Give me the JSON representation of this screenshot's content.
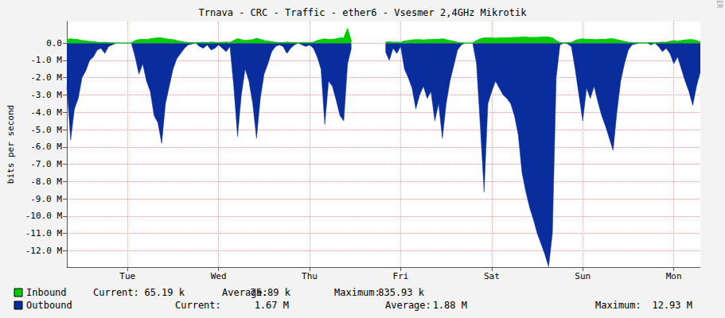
{
  "chart_data": {
    "type": "area",
    "title": "Trnava - CRC - Traffic - ether6 - Vsesmer 2,4GHz Mikrotik",
    "y_label": "bits per second",
    "side_text": "RRDTOOL / TOBI OETIKER",
    "grid": true,
    "legend": "bottom",
    "ylim": [
      -12.95,
      1.25
    ],
    "yticks": [
      {
        "value": 0,
        "label": "0.0"
      },
      {
        "value": -1,
        "label": "-1.0 M"
      },
      {
        "value": -2,
        "label": "-2.0 M"
      },
      {
        "value": -3,
        "label": "-3.0 M"
      },
      {
        "value": -4,
        "label": "-4.0 M"
      },
      {
        "value": -5,
        "label": "-5.0 M"
      },
      {
        "value": -6,
        "label": "-6.0 M"
      },
      {
        "value": -7,
        "label": "-7.0 M"
      },
      {
        "value": -8,
        "label": "-8.0 M"
      },
      {
        "value": -9,
        "label": "-9.0 M"
      },
      {
        "value": -10,
        "label": "-10.0 M"
      },
      {
        "value": -11,
        "label": "-11.0 M"
      },
      {
        "value": -12,
        "label": "-12.0 M"
      }
    ],
    "categories": [
      null,
      null,
      null,
      null,
      null,
      null,
      null,
      null,
      null,
      null,
      null,
      null,
      null,
      null,
      null,
      null,
      "Tue",
      null,
      null,
      null,
      null,
      null,
      null,
      null,
      null,
      null,
      null,
      null,
      null,
      null,
      null,
      null,
      null,
      null,
      null,
      null,
      null,
      null,
      null,
      null,
      "Wed",
      null,
      null,
      null,
      null,
      null,
      null,
      null,
      null,
      null,
      null,
      null,
      null,
      null,
      null,
      null,
      null,
      null,
      null,
      null,
      null,
      null,
      null,
      null,
      "Thu",
      null,
      null,
      null,
      null,
      null,
      null,
      null,
      null,
      null,
      null,
      null,
      null,
      null,
      null,
      null,
      null,
      null,
      null,
      null,
      null,
      null,
      null,
      null,
      "Fri",
      null,
      null,
      null,
      null,
      null,
      null,
      null,
      null,
      null,
      null,
      null,
      null,
      null,
      null,
      null,
      null,
      null,
      null,
      null,
      null,
      null,
      null,
      null,
      "Sat",
      null,
      null,
      null,
      null,
      null,
      null,
      null,
      null,
      null,
      null,
      null,
      null,
      null,
      null,
      null,
      null,
      null,
      null,
      null,
      null,
      null,
      null,
      null,
      "Sun",
      null,
      null,
      null,
      null,
      null,
      null,
      null,
      null,
      null,
      null,
      null,
      null,
      null,
      null,
      null,
      null,
      null,
      null,
      null,
      null,
      null,
      null,
      null,
      "Mon",
      null,
      null,
      null,
      null,
      null,
      null,
      null
    ],
    "series": [
      {
        "name": "Inbound",
        "color": "#00cc00",
        "stats": [
          {
            "label": "Current:",
            "value": "65.19 k"
          },
          {
            "label": "Average:",
            "value": "75.89 k"
          },
          {
            "label": "Maximum:",
            "value": "835.93 k"
          }
        ],
        "values": [
          0.2,
          0.25,
          0.22,
          0.2,
          0.15,
          0.12,
          0.1,
          0.08,
          0.05,
          0.04,
          0.05,
          0.03,
          0.02,
          0.01,
          0.01,
          0.01,
          0.01,
          0.01,
          0.15,
          0.2,
          0.22,
          0.2,
          0.25,
          0.28,
          0.3,
          0.3,
          0.25,
          0.22,
          0.2,
          0.15,
          0.1,
          0.06,
          0.04,
          0.03,
          0.02,
          0.04,
          0.05,
          0.03,
          0.06,
          0.05,
          0.03,
          0.05,
          0.06,
          0.04,
          0.15,
          0.25,
          0.2,
          0.15,
          0.18,
          0.2,
          0.28,
          0.22,
          0.15,
          0.12,
          0.08,
          0.05,
          0.03,
          0.04,
          0.06,
          0.04,
          0.03,
          0.02,
          0.03,
          0.04,
          0.03,
          0.05,
          0.15,
          0.2,
          0.25,
          0.2,
          0.22,
          0.25,
          0.3,
          0.3,
          0.84,
          0.1,
          null,
          null,
          null,
          null,
          null,
          null,
          null,
          null,
          0.05,
          0.08,
          0.05,
          0.06,
          0.04,
          0.12,
          0.15,
          0.18,
          0.2,
          0.2,
          0.18,
          0.2,
          0.2,
          0.22,
          0.22,
          0.25,
          0.2,
          0.15,
          0.1,
          0.05,
          0.02,
          0.01,
          0.01,
          0.01,
          0.15,
          0.25,
          0.3,
          0.3,
          0.3,
          0.28,
          0.3,
          0.3,
          0.3,
          0.32,
          0.33,
          0.33,
          0.35,
          0.35,
          0.33,
          0.33,
          0.33,
          0.35,
          0.35,
          0.35,
          0.3,
          0.15,
          0.03,
          0.02,
          0.02,
          0.04,
          0.15,
          0.22,
          0.25,
          0.22,
          0.22,
          0.2,
          0.2,
          0.22,
          0.22,
          0.25,
          0.25,
          0.2,
          0.15,
          0.1,
          0.05,
          0.03,
          0.02,
          0.02,
          0.01,
          0.02,
          0.03,
          0.02,
          0.04,
          0.06,
          0.05,
          0.1,
          0.15,
          0.12,
          0.15,
          0.18,
          0.2,
          0.2,
          0.15,
          0.065
        ]
      },
      {
        "name": "Outbound",
        "color": "#0a2d9e",
        "stats": [
          {
            "label": "Current:",
            "value": "1.67 M"
          },
          {
            "label": "Average:",
            "value": "1.88 M"
          },
          {
            "label": "Maximum:",
            "value": "12.93 M"
          }
        ],
        "values": [
          -2.5,
          -5.6,
          -3.8,
          -3.2,
          -2.0,
          -1.6,
          -1.0,
          -0.8,
          -0.4,
          -0.3,
          -0.6,
          -0.2,
          -0.1,
          0,
          0,
          0,
          0,
          0,
          -0.8,
          -1.8,
          -1.2,
          -2.2,
          -2.8,
          -4.2,
          -4.6,
          -5.8,
          -3.5,
          -2.5,
          -1.5,
          -0.9,
          -0.6,
          -0.3,
          -0.1,
          -0.05,
          0,
          -0.2,
          -0.3,
          -0.1,
          -0.4,
          -0.3,
          -0.1,
          -0.3,
          -0.5,
          -0.2,
          -2.5,
          -5.4,
          -3.0,
          -1.5,
          -2.2,
          -3.5,
          -5.5,
          -3.2,
          -1.8,
          -1.2,
          -0.5,
          -0.2,
          -0.1,
          -0.2,
          -0.6,
          -0.3,
          -0.1,
          0,
          -0.1,
          -0.2,
          -0.1,
          -0.3,
          -0.8,
          -1.5,
          -4.7,
          -2.2,
          -2.5,
          -3.3,
          -4.2,
          -4.5,
          -1.2,
          -0.3,
          null,
          null,
          null,
          null,
          null,
          null,
          null,
          null,
          -0.5,
          -1.0,
          -0.3,
          -0.6,
          -0.2,
          -1.5,
          -2.0,
          -2.6,
          -3.8,
          -3.0,
          -2.5,
          -3.2,
          -2.8,
          -4.5,
          -3.5,
          -5.5,
          -3.5,
          -2.2,
          -1.3,
          -0.4,
          -0.1,
          0,
          0,
          0,
          -1.2,
          -4.8,
          -8.6,
          -3.5,
          -2.8,
          -2.2,
          -2.6,
          -3.0,
          -3.2,
          -3.5,
          -4.2,
          -5.3,
          -7.5,
          -8.6,
          -9.5,
          -10.2,
          -11.0,
          -11.6,
          -12.2,
          -12.93,
          -11.0,
          -2.0,
          -0.1,
          0,
          -0.05,
          -0.2,
          -1.5,
          -3.0,
          -4.5,
          -2.6,
          -3.2,
          -2.5,
          -3.4,
          -4.2,
          -4.8,
          -5.5,
          -6.2,
          -4.0,
          -2.2,
          -1.2,
          -0.4,
          -0.1,
          -0.05,
          0,
          0,
          0,
          -0.1,
          0,
          -0.2,
          -0.5,
          -0.3,
          -0.6,
          -1.2,
          -0.8,
          -1.5,
          -2.2,
          -2.8,
          -3.6,
          -2.5,
          -1.67
        ]
      }
    ]
  }
}
